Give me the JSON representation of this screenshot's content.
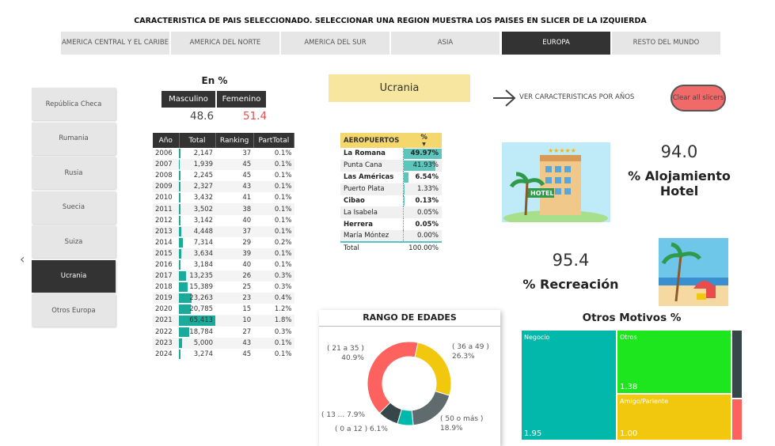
{
  "title": "CARACTERISTICA DE PAIS SELECCIONADO. SELECCIONAR UNA REGION MUESTRA LOS PAISES EN SLICER DE LA IZQUIERDA",
  "regions": [
    {
      "label": "AMERICA CENTRAL Y EL CARIBE"
    },
    {
      "label": "AMERICA DEL NORTE"
    },
    {
      "label": "AMERICA DEL SUR"
    },
    {
      "label": "ASIA"
    },
    {
      "label": "EUROPA",
      "selected": true
    },
    {
      "label": "RESTO DEL MUNDO"
    }
  ],
  "countries": [
    {
      "label": "República Checa"
    },
    {
      "label": "Rumania"
    },
    {
      "label": "Rusia"
    },
    {
      "label": "Suecia"
    },
    {
      "label": "Suiza"
    },
    {
      "label": "Ucrania",
      "selected": true
    },
    {
      "label": "Otros Europa"
    }
  ],
  "gender": {
    "title": "En %",
    "male_label": "Masculino",
    "female_label": "Femenino",
    "male": "48.6",
    "female": "51.4",
    "female_color": "#e84c4c"
  },
  "years_table": {
    "headers": [
      "Año",
      "Total",
      "Ranking",
      "PartTotal"
    ],
    "rows": [
      [
        "2006",
        "2,147",
        "37",
        "0.1%"
      ],
      [
        "2007",
        "1,939",
        "45",
        "0.1%"
      ],
      [
        "2008",
        "2,245",
        "45",
        "0.1%"
      ],
      [
        "2009",
        "2,327",
        "43",
        "0.1%"
      ],
      [
        "2010",
        "3,432",
        "41",
        "0.1%"
      ],
      [
        "2011",
        "3,502",
        "38",
        "0.1%"
      ],
      [
        "2012",
        "3,142",
        "40",
        "0.1%"
      ],
      [
        "2013",
        "4,448",
        "37",
        "0.1%"
      ],
      [
        "2014",
        "7,314",
        "29",
        "0.2%"
      ],
      [
        "2015",
        "3,634",
        "39",
        "0.1%"
      ],
      [
        "2016",
        "3,184",
        "40",
        "0.1%"
      ],
      [
        "2017",
        "13,235",
        "26",
        "0.3%"
      ],
      [
        "2018",
        "15,389",
        "25",
        "0.3%"
      ],
      [
        "2019",
        "23,263",
        "23",
        "0.4%"
      ],
      [
        "2020",
        "20,785",
        "15",
        "1.2%"
      ],
      [
        "2021",
        "65,413",
        "10",
        "1.8%"
      ],
      [
        "2022",
        "18,784",
        "27",
        "0.3%"
      ],
      [
        "2023",
        "5,000",
        "43",
        "0.1%"
      ],
      [
        "2024",
        "3,274",
        "45",
        "0.1%"
      ]
    ]
  },
  "selected_country": "Ucrania",
  "nav_link": "VER CARACTERISTICAS POR AÑOS",
  "clear_button": "Clear all slicers",
  "airports": {
    "headers": [
      "AEROPUERTOS",
      "%"
    ],
    "rows": [
      [
        "La Romana",
        "49.97%"
      ],
      [
        "Punta Cana",
        "41.93%"
      ],
      [
        "Las Américas",
        "6.54%"
      ],
      [
        "Puerto Plata",
        "1.33%"
      ],
      [
        "Cibao",
        "0.13%"
      ],
      [
        "La Isabela",
        "0.05%"
      ],
      [
        "Herrera",
        "0.05%"
      ],
      [
        "María Móntez",
        "0.00%"
      ]
    ],
    "total_label": "Total",
    "total": "100.00%"
  },
  "hotel": {
    "value": "94.0",
    "label": "% Alojamiento Hotel",
    "image_sign": "HOTEL"
  },
  "recreation": {
    "value": "95.4",
    "label": "% Recreación"
  },
  "age_chart": {
    "title": "RANGO DE EDADES",
    "type": "donut",
    "slices": [
      {
        "label": "( 36 a 49 )",
        "pct": "26.3%",
        "value": 26.3,
        "color": "#f2c80f"
      },
      {
        "label": "( 50 o más )",
        "pct": "18.9%",
        "value": 18.9,
        "color": "#5f6b6d"
      },
      {
        "label": "( 0 a 12 )",
        "pct": "6.1%",
        "value": 6.1,
        "color": "#01b8aa"
      },
      {
        "label": "( 13 ...",
        "pct": "7.9%",
        "value": 7.9,
        "color": "#374649"
      },
      {
        "label": "( 21 a 35 )",
        "pct": "40.9%",
        "value": 40.9,
        "color": "#fd625e"
      }
    ]
  },
  "other_reasons": {
    "title": "Otros Motivos %",
    "items": [
      {
        "label": "Negocio",
        "value": "1.95",
        "color": "#01b8aa"
      },
      {
        "label": "Otros",
        "value": "1.38",
        "color": "#1ee61e"
      },
      {
        "label": "Amigo/Pariente",
        "value": "1.00",
        "color": "#f2c80f"
      },
      {
        "color": "#374649"
      },
      {
        "color": "#fd625e"
      }
    ]
  }
}
